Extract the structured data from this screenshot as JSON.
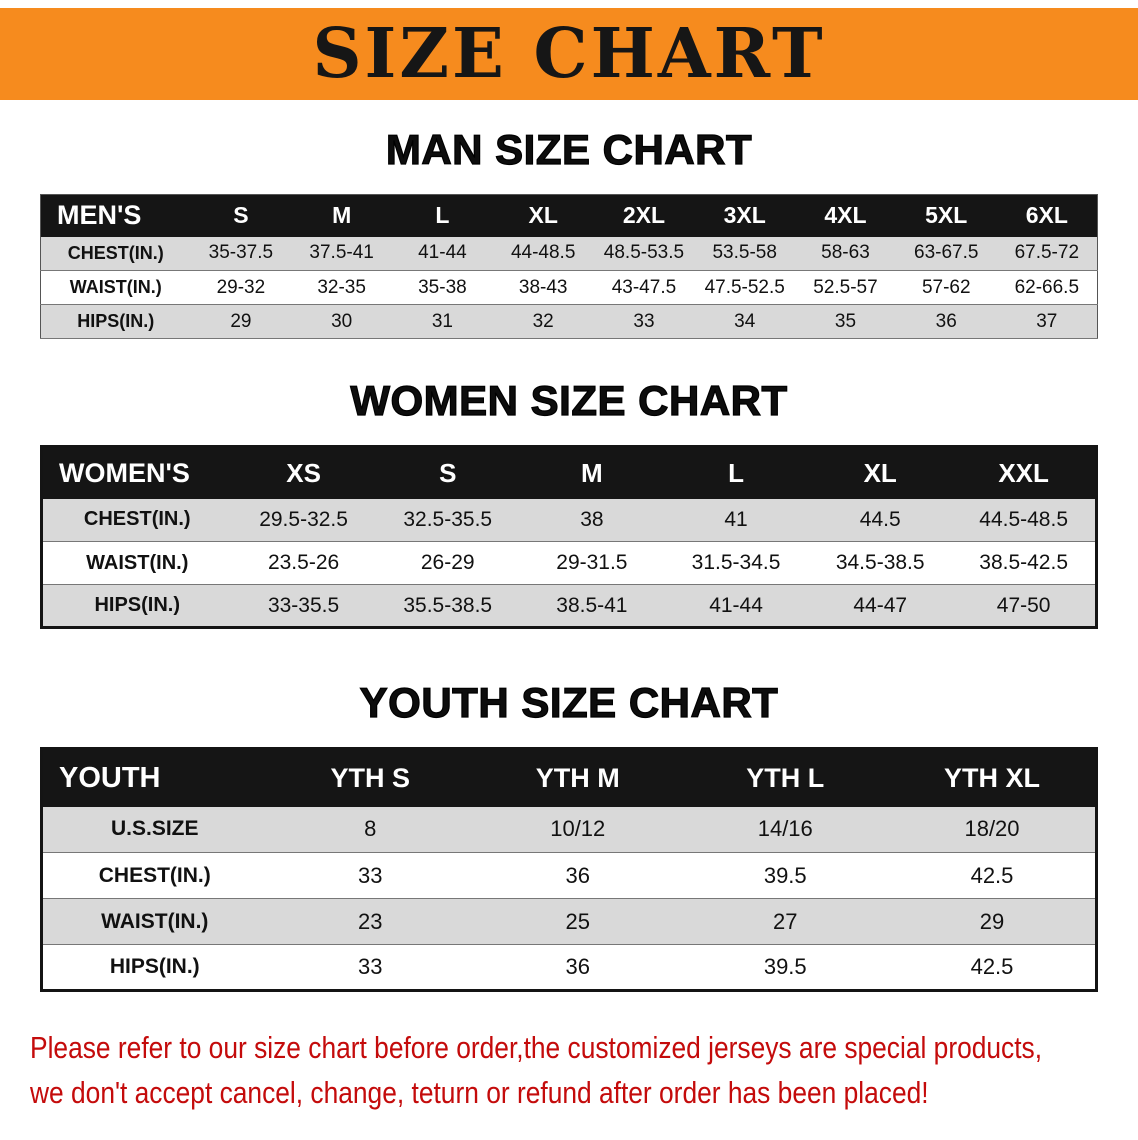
{
  "banner": {
    "title": "SIZE CHART",
    "bg_color": "#f68b1e",
    "text_color": "#161616"
  },
  "sections": {
    "men": {
      "heading": "MAN SIZE CHART"
    },
    "women": {
      "heading": "WOMEN SIZE CHART"
    },
    "youth": {
      "heading": "YOUTH SIZE CHART"
    }
  },
  "tables": {
    "men": {
      "header": [
        "MEN'S",
        "S",
        "M",
        "L",
        "XL",
        "2XL",
        "3XL",
        "4XL",
        "5XL",
        "6XL"
      ],
      "rows": [
        [
          "CHEST(IN.)",
          "35-37.5",
          "37.5-41",
          "41-44",
          "44-48.5",
          "48.5-53.5",
          "53.5-58",
          "58-63",
          "63-67.5",
          "67.5-72"
        ],
        [
          "WAIST(IN.)",
          "29-32",
          "32-35",
          "35-38",
          "38-43",
          "43-47.5",
          "47.5-52.5",
          "52.5-57",
          "57-62",
          "62-66.5"
        ],
        [
          "HIPS(IN.)",
          "29",
          "30",
          "31",
          "32",
          "33",
          "34",
          "35",
          "36",
          "37"
        ]
      ]
    },
    "women": {
      "header": [
        "WOMEN'S",
        "XS",
        "S",
        "M",
        "L",
        "XL",
        "XXL"
      ],
      "rows": [
        [
          "CHEST(IN.)",
          "29.5-32.5",
          "32.5-35.5",
          "38",
          "41",
          "44.5",
          "44.5-48.5"
        ],
        [
          "WAIST(IN.)",
          "23.5-26",
          "26-29",
          "29-31.5",
          "31.5-34.5",
          "34.5-38.5",
          "38.5-42.5"
        ],
        [
          "HIPS(IN.)",
          "33-35.5",
          "35.5-38.5",
          "38.5-41",
          "41-44",
          "44-47",
          "47-50"
        ]
      ]
    },
    "youth": {
      "header": [
        "YOUTH",
        "YTH S",
        "YTH M",
        "YTH L",
        "YTH XL"
      ],
      "rows": [
        [
          "U.S.SIZE",
          "8",
          "10/12",
          "14/16",
          "18/20"
        ],
        [
          "CHEST(IN.)",
          "33",
          "36",
          "39.5",
          "42.5"
        ],
        [
          "WAIST(IN.)",
          "23",
          "25",
          "27",
          "29"
        ],
        [
          "HIPS(IN.)",
          "33",
          "36",
          "39.5",
          "42.5"
        ]
      ]
    }
  },
  "disclaimer": {
    "line1": "Please refer to our size chart before order,the customized jerseys are special products,",
    "line2": "we don't accept cancel, change, teturn or refund after order has been placed!",
    "text_color": "#c40b0b"
  },
  "colors": {
    "table_header_bg": "#151515",
    "table_header_text": "#ffffff",
    "row_stripe": "#d9d9d9"
  }
}
